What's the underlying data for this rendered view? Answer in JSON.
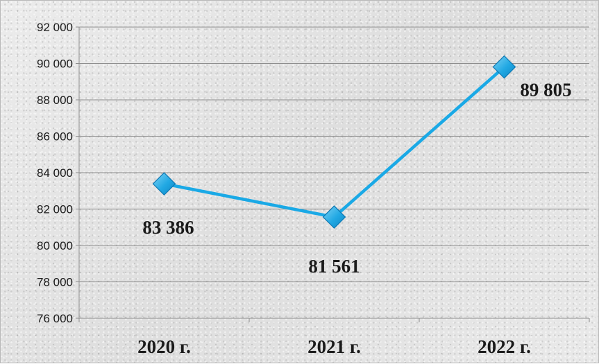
{
  "chart_data": {
    "type": "line",
    "title": "",
    "xlabel": "",
    "ylabel": "",
    "categories": [
      "2020 г.",
      "2021 г.",
      "2022 г."
    ],
    "series": [
      {
        "values": [
          83386,
          81561,
          89805
        ],
        "data_labels": [
          "83 386",
          "81 561",
          "89 805"
        ],
        "color": "#1aa9e6",
        "marker": "diamond"
      }
    ],
    "ylim": [
      76000,
      92000
    ],
    "yticks": [
      76000,
      78000,
      80000,
      82000,
      84000,
      86000,
      88000,
      90000,
      92000
    ],
    "ytick_labels": [
      "76 000",
      "78 000",
      "80 000",
      "82 000",
      "84 000",
      "86 000",
      "88 000",
      "90 000",
      "92 000"
    ],
    "grid": true,
    "legend": false
  }
}
